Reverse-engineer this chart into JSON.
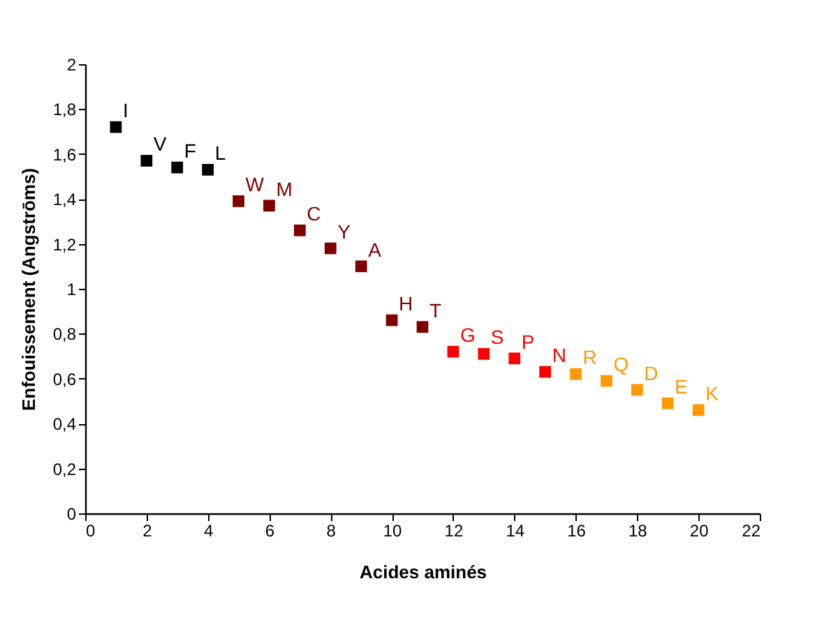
{
  "chart_data": {
    "type": "scatter",
    "xlabel": "Acides aminés",
    "ylabel": "Enfouissement (Angstrōms)",
    "marker": "square",
    "grid": false,
    "legend": false,
    "xlim": [
      0,
      22
    ],
    "xticks": [
      0,
      2,
      4,
      6,
      8,
      10,
      12,
      14,
      16,
      18,
      20,
      22
    ],
    "ylim": [
      0,
      2
    ],
    "yticks": [
      0,
      {
        "value": 0.2,
        "label": "0,2"
      },
      {
        "value": 0.4,
        "label": "0,4"
      },
      {
        "value": 0.6,
        "label": "0,6"
      },
      {
        "value": 0.8,
        "label": "0,8"
      },
      1,
      {
        "value": 1.2,
        "label": "1,2"
      },
      {
        "value": 1.4,
        "label": "1,4"
      },
      {
        "value": 1.6,
        "label": "1,6"
      },
      {
        "value": 1.8,
        "label": "1,8"
      },
      2
    ],
    "series": [
      {
        "color": "#000000",
        "x": [
          1,
          2,
          3,
          4
        ],
        "values": [
          1.72,
          1.57,
          1.54,
          1.53
        ]
      },
      {
        "color": "#800000",
        "x": [
          5,
          6,
          7,
          8,
          9,
          10,
          11
        ],
        "values": [
          1.39,
          1.37,
          1.26,
          1.18,
          1.1,
          0.86,
          0.83
        ]
      },
      {
        "color": "#ff0000",
        "x": [
          12,
          13,
          14,
          15
        ],
        "values": [
          0.72,
          0.71,
          0.69,
          0.63
        ]
      },
      {
        "color": "#ff9900",
        "x": [
          16,
          17,
          18,
          19,
          20
        ],
        "values": [
          0.62,
          0.59,
          0.55,
          0.49,
          0.46
        ]
      }
    ],
    "annotations": [
      {
        "text": "I",
        "x": 1,
        "y": 1.72
      },
      {
        "text": "V",
        "x": 2,
        "y": 1.57
      },
      {
        "text": "F",
        "x": 3,
        "y": 1.54
      },
      {
        "text": "L",
        "x": 4,
        "y": 1.53
      },
      {
        "text": "W",
        "x": 5,
        "y": 1.39
      },
      {
        "text": "M",
        "x": 6,
        "y": 1.37
      },
      {
        "text": "C",
        "x": 7,
        "y": 1.26
      },
      {
        "text": "Y",
        "x": 8,
        "y": 1.18
      },
      {
        "text": "A",
        "x": 9,
        "y": 1.1
      },
      {
        "text": "H",
        "x": 10,
        "y": 0.86
      },
      {
        "text": "T",
        "x": 11,
        "y": 0.83
      },
      {
        "text": "G",
        "x": 12,
        "y": 0.72
      },
      {
        "text": "S",
        "x": 13,
        "y": 0.71
      },
      {
        "text": "P",
        "x": 14,
        "y": 0.69
      },
      {
        "text": "N",
        "x": 15,
        "y": 0.63
      },
      {
        "text": "R",
        "x": 16,
        "y": 0.62
      },
      {
        "text": "Q",
        "x": 17,
        "y": 0.59
      },
      {
        "text": "D",
        "x": 18,
        "y": 0.55
      },
      {
        "text": "E",
        "x": 19,
        "y": 0.49
      },
      {
        "text": "K",
        "x": 20,
        "y": 0.46
      }
    ]
  }
}
